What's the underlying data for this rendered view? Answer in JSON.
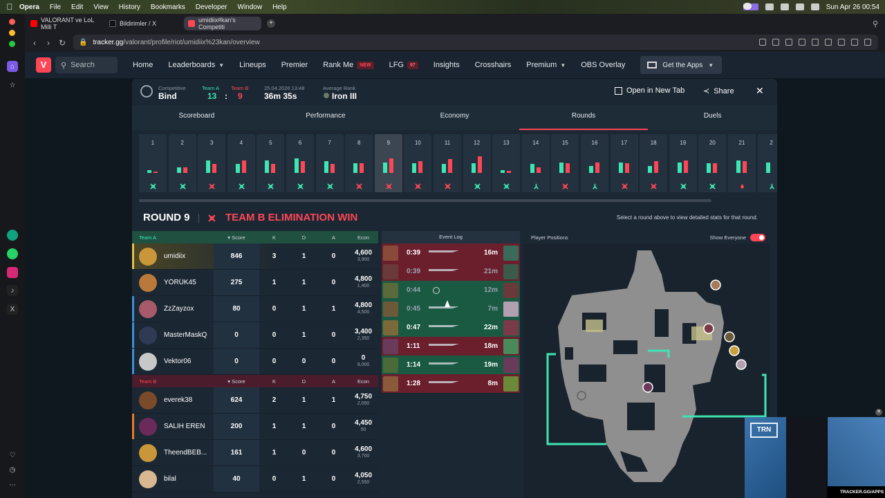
{
  "menubar": {
    "app": "Opera",
    "items": [
      "File",
      "Edit",
      "View",
      "History",
      "Bookmarks",
      "Developer",
      "Window",
      "Help"
    ],
    "clock": "Sun Apr 26  00:54"
  },
  "tabs": [
    {
      "label": "VALORANT ve LoL Milli T",
      "color": "#ff0000"
    },
    {
      "label": "Bildirimler / X",
      "color": "#111111"
    },
    {
      "label": "umidiix#kan's Competiti",
      "color": "#ff4655",
      "active": true
    }
  ],
  "address": {
    "host": "tracker.gg",
    "path": "/valorant/profile/riot/umidiix%23kan/overview"
  },
  "nav": {
    "search": "Search",
    "items": [
      {
        "label": "Home"
      },
      {
        "label": "Leaderboards",
        "caret": true
      },
      {
        "label": "Lineups"
      },
      {
        "label": "Premier"
      },
      {
        "label": "Rank Me",
        "badge": "NEW"
      },
      {
        "label": "LFG",
        "badge": "97"
      },
      {
        "label": "Insights"
      },
      {
        "label": "Crosshairs"
      },
      {
        "label": "Premium",
        "caret": true
      },
      {
        "label": "OBS Overlay"
      }
    ],
    "get_apps": "Get the Apps"
  },
  "match": {
    "mode_label": "Competitive",
    "map": "Bind",
    "team_a_label": "Team A",
    "team_a_score": "13",
    "sep": ":",
    "team_b_label": "Team B",
    "team_b_score": "9",
    "date": "25.04.2026 13:48",
    "duration": "36m 35s",
    "avg_rank_label": "Average Rank",
    "avg_rank": "Iron III",
    "open_new_tab": "Open in New Tab",
    "share": "Share"
  },
  "subtabs": [
    "Scoreboard",
    "Performance",
    "Economy",
    "Rounds",
    "Duels"
  ],
  "active_subtab": 3,
  "rounds": [
    {
      "n": "1",
      "a": 0.15,
      "b": 0.08,
      "w": "a",
      "icon": "elim"
    },
    {
      "n": "2",
      "a": 0.3,
      "b": 0.3,
      "w": "a",
      "icon": "elim"
    },
    {
      "n": "3",
      "a": 0.65,
      "b": 0.45,
      "w": "b",
      "icon": "elim"
    },
    {
      "n": "4",
      "a": 0.45,
      "b": 0.65,
      "w": "a",
      "icon": "elim"
    },
    {
      "n": "5",
      "a": 0.65,
      "b": 0.45,
      "w": "a",
      "icon": "elim"
    },
    {
      "n": "6",
      "a": 0.75,
      "b": 0.6,
      "w": "a",
      "icon": "elim"
    },
    {
      "n": "7",
      "a": 0.6,
      "b": 0.45,
      "w": "a",
      "icon": "elim"
    },
    {
      "n": "8",
      "a": 0.5,
      "b": 0.5,
      "w": "b",
      "icon": "elim"
    },
    {
      "n": "9",
      "a": 0.55,
      "b": 0.75,
      "w": "b",
      "icon": "elim"
    },
    {
      "n": "10",
      "a": 0.5,
      "b": 0.6,
      "w": "b",
      "icon": "elim"
    },
    {
      "n": "11",
      "a": 0.45,
      "b": 0.7,
      "w": "b",
      "icon": "elim"
    },
    {
      "n": "12",
      "a": 0.5,
      "b": 0.85,
      "w": "a",
      "icon": "elim"
    },
    {
      "n": "13",
      "a": 0.15,
      "b": 0.1,
      "w": "a",
      "icon": "elim"
    },
    {
      "n": "14",
      "a": 0.45,
      "b": 0.3,
      "w": "a",
      "icon": "defuse"
    },
    {
      "n": "15",
      "a": 0.55,
      "b": 0.5,
      "w": "b",
      "icon": "elim"
    },
    {
      "n": "16",
      "a": 0.35,
      "b": 0.55,
      "w": "a",
      "icon": "defuse"
    },
    {
      "n": "17",
      "a": 0.55,
      "b": 0.5,
      "w": "b",
      "icon": "elim"
    },
    {
      "n": "18",
      "a": 0.35,
      "b": 0.6,
      "w": "b",
      "icon": "elim"
    },
    {
      "n": "19",
      "a": 0.55,
      "b": 0.65,
      "w": "a",
      "icon": "elim"
    },
    {
      "n": "20",
      "a": 0.5,
      "b": 0.5,
      "w": "a",
      "icon": "elim"
    },
    {
      "n": "21",
      "a": 0.65,
      "b": 0.6,
      "w": "b",
      "icon": "spike"
    },
    {
      "n": "2",
      "a": 0.55,
      "b": 0,
      "w": "a",
      "icon": "defuse"
    }
  ],
  "active_round_index": 8,
  "round_view": {
    "title": "ROUND 9",
    "result": "TEAM B ELIMINATION WIN",
    "hint": "Select a round above to view detailed stats for that round."
  },
  "scoreboard": {
    "cols": {
      "score": "Score",
      "k": "K",
      "d": "D",
      "a": "A",
      "econ": "Econ"
    },
    "team_a": {
      "label": "Team A",
      "players": [
        {
          "name": "umidiix",
          "score": "846",
          "k": "3",
          "d": "1",
          "a": "0",
          "e1": "4,600",
          "e2": "3,900",
          "accent": "#e3c14a",
          "agent": "#c9963a",
          "self": true
        },
        {
          "name": "YÖRÜK45",
          "score": "275",
          "k": "1",
          "d": "1",
          "a": "0",
          "e1": "4,800",
          "e2": "1,400",
          "accent": "",
          "agent": "#b8793a"
        },
        {
          "name": "ZzZayzox",
          "score": "80",
          "k": "0",
          "d": "1",
          "a": "1",
          "e1": "4,800",
          "e2": "4,500",
          "accent": "#3d8fd6",
          "agent": "#a65a6a"
        },
        {
          "name": "MasterMaskQ",
          "score": "0",
          "k": "0",
          "d": "1",
          "a": "0",
          "e1": "3,400",
          "e2": "2,350",
          "accent": "#3d8fd6",
          "agent": "#2f3b55"
        },
        {
          "name": "Vektor06",
          "score": "0",
          "k": "0",
          "d": "0",
          "a": "0",
          "e1": "0",
          "e2": "9,000",
          "accent": "#3d8fd6",
          "agent": "#c8c8c8"
        }
      ]
    },
    "team_b": {
      "label": "Team B",
      "players": [
        {
          "name": "everek38",
          "score": "624",
          "k": "2",
          "d": "1",
          "a": "1",
          "e1": "4,750",
          "e2": "2,050",
          "accent": "",
          "agent": "#7a4a2a"
        },
        {
          "name": "SALİH EREN",
          "score": "200",
          "k": "1",
          "d": "1",
          "a": "0",
          "e1": "4,450",
          "e2": "50",
          "accent": "#e87b2a",
          "agent": "#6a2a5a"
        },
        {
          "name": "TheendBEB...",
          "score": "161",
          "k": "1",
          "d": "0",
          "a": "0",
          "e1": "4,600",
          "e2": "3,700",
          "accent": "",
          "agent": "#c9963a"
        },
        {
          "name": "bilal",
          "score": "40",
          "k": "0",
          "d": "1",
          "a": "0",
          "e1": "4,050",
          "e2": "2,550",
          "accent": "",
          "agent": "#d8b890"
        }
      ]
    }
  },
  "event_log": {
    "title": "Event Log",
    "events": [
      {
        "time": "0:39",
        "dist": "16m",
        "side": "red",
        "dim": false,
        "weapon": "rifle",
        "k": "#8a4a3a",
        "v": "#3a6a5a"
      },
      {
        "time": "0:39",
        "dist": "21m",
        "side": "red",
        "dim": true,
        "weapon": "rifle",
        "k": "#6a3a3a",
        "v": "#3a5a4a"
      },
      {
        "time": "0:44",
        "dist": "12m",
        "side": "green",
        "dim": true,
        "weapon": "ability",
        "k": "#5a6a3a",
        "v": "#6a3a3a"
      },
      {
        "time": "0:45",
        "dist": "7m",
        "side": "green",
        "dim": true,
        "weapon": "rifle",
        "k": "#6a5a3a",
        "v": "#b0a0b0"
      },
      {
        "time": "0:47",
        "dist": "22m",
        "side": "green",
        "dim": false,
        "weapon": "rifle",
        "k": "#7a6a3a",
        "v": "#7a3a4a"
      },
      {
        "time": "1:11",
        "dist": "18m",
        "side": "red",
        "dim": false,
        "weapon": "rifle",
        "k": "#6a3a5a",
        "v": "#4a8a5a"
      },
      {
        "time": "1:14",
        "dist": "19m",
        "side": "green",
        "dim": false,
        "weapon": "rifle",
        "k": "#4a6a3a",
        "v": "#6a3a5a"
      },
      {
        "time": "1:28",
        "dist": "8m",
        "side": "red",
        "dim": false,
        "weapon": "rifle",
        "k": "#8a5a3a",
        "v": "#6a8a3a"
      }
    ]
  },
  "positions": {
    "title": "Player Positions",
    "show_everyone": "Show Everyone"
  },
  "pip": {
    "logo": "TRN",
    "footer": "TRACKER.GG/APPS"
  }
}
